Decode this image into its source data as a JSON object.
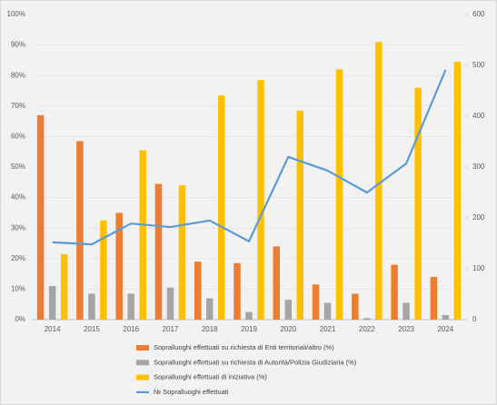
{
  "chart_data": {
    "type": "bar",
    "categories": [
      "2014",
      "2015",
      "2016",
      "2017",
      "2018",
      "2019",
      "2020",
      "2021",
      "2022",
      "2023",
      "2024"
    ],
    "series": [
      {
        "name": "Sopralluoghi effettuati su richiesta di Enti territoriali/altro (%)",
        "color": "#ed7d31",
        "values": [
          67,
          58.5,
          35,
          44.5,
          19,
          18.5,
          24,
          11.5,
          8.5,
          18,
          14
        ]
      },
      {
        "name": "Sopralluoghi effettuati su richiesta di Autorità/Polizia Giudiziaria (%)",
        "color": "#a5a5a5",
        "values": [
          11,
          8.5,
          8.5,
          10.5,
          7,
          2.5,
          6.5,
          5.5,
          0.5,
          5.5,
          1.5
        ]
      },
      {
        "name": "Sopralluoghi effettuati di iniziativa (%)",
        "color": "#ffc000",
        "values": [
          21.5,
          32.5,
          55.5,
          44,
          73.5,
          78.5,
          68.5,
          82,
          91,
          76,
          84.5
        ]
      },
      {
        "name": "№ Sopralluoghi effettuati",
        "color": "#5b9bd5",
        "type": "line",
        "axis": "y2",
        "values": [
          152,
          148,
          189,
          182,
          195,
          154,
          320,
          293,
          250,
          307,
          491
        ]
      }
    ],
    "ylim": [
      0,
      100
    ],
    "yticks": [
      {
        "value": 0,
        "label": "0%"
      },
      {
        "value": 10,
        "label": "10%"
      },
      {
        "value": 20,
        "label": "20%"
      },
      {
        "value": 30,
        "label": "30%"
      },
      {
        "value": 40,
        "label": "40%"
      },
      {
        "value": 50,
        "label": "50%"
      },
      {
        "value": 60,
        "label": "60%"
      },
      {
        "value": 70,
        "label": "70%"
      },
      {
        "value": 80,
        "label": "80%"
      },
      {
        "value": 90,
        "label": "90%"
      },
      {
        "value": 100,
        "label": "100%"
      }
    ],
    "y2lim": [
      0,
      600
    ],
    "y2ticks": [
      0,
      100,
      200,
      300,
      400,
      500,
      600
    ],
    "legend": "bottom"
  }
}
